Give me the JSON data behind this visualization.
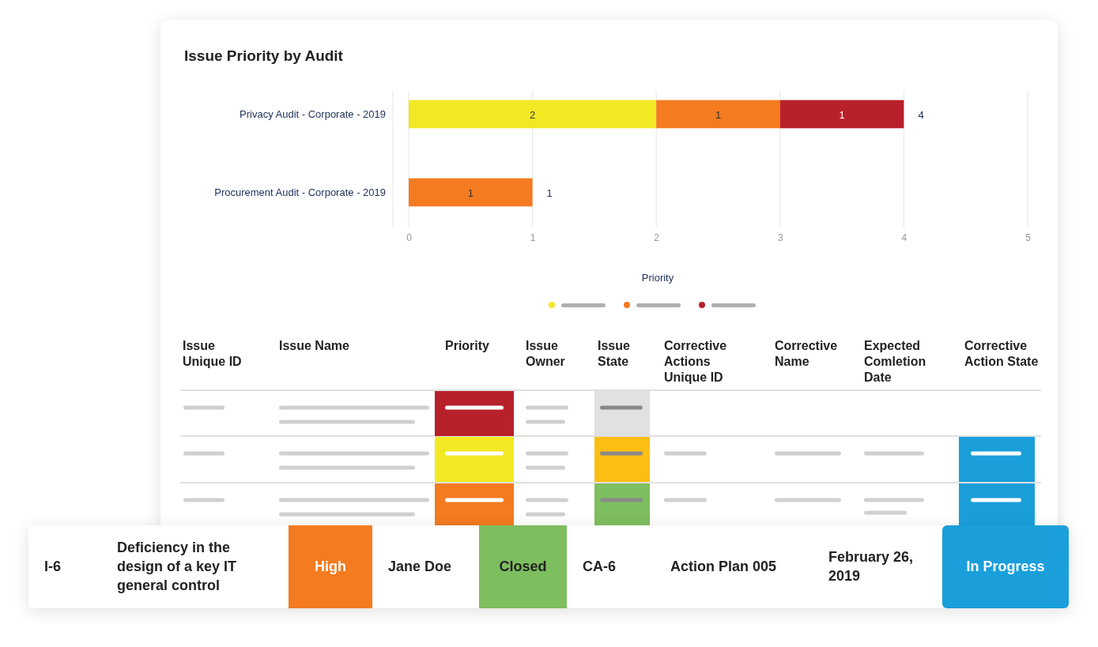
{
  "chart_data": [
    {
      "type": "bar",
      "title": "Issue Priority by Audit",
      "orientation": "horizontal",
      "stacked": true,
      "categories": [
        "Privacy Audit - Corporate - 2019",
        "Procurement Audit - Corporate - 2019"
      ],
      "series": [
        {
          "color": "#f2e824",
          "values": [
            2,
            null
          ]
        },
        {
          "color": "#f47b20",
          "values": [
            1,
            1
          ]
        },
        {
          "color": "#b8202a",
          "values": [
            1,
            null
          ]
        }
      ],
      "xlim": [
        0,
        5
      ],
      "xticks": [
        0,
        1,
        2,
        3,
        4,
        5
      ],
      "xlabel": "Priority",
      "grid": "x",
      "data_labels": true,
      "totals": [
        "4",
        "1"
      ]
    },
    {
      "type": "other",
      "categories": [
        "Issue Unique ID",
        "Issue Name",
        "Priority",
        "Issue Owner",
        "Issue State",
        "Corrective Actions Unique ID",
        "Corrective Name",
        "Expected Comletion Date",
        "Corrective Action State"
      ],
      "annotations": [
        "I-6",
        "Deficiency in the design of a key IT general control",
        "High",
        "Jane Doe",
        "Closed",
        "CA-6",
        "Action Plan 005",
        "February 26, 2019",
        "In Progress"
      ],
      "colors": [
        null,
        null,
        "#f47b20",
        null,
        "#7dbe5f",
        null,
        null,
        null,
        "#1a9fdb"
      ]
    }
  ]
}
